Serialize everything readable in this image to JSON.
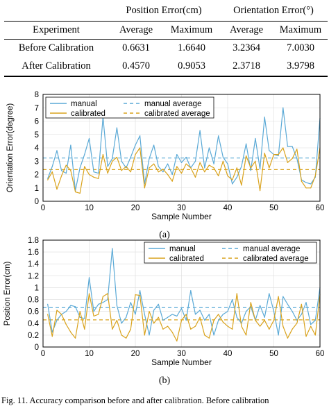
{
  "table": {
    "group_headers": [
      "Position Error(cm)",
      "Orientation Error(°)"
    ],
    "columns": [
      "Experiment",
      "Average",
      "Maximum",
      "Average",
      "Maximum"
    ],
    "rows": [
      [
        "Before Calibration",
        "0.6631",
        "1.6640",
        "3.2364",
        "7.0030"
      ],
      [
        "After Calibration",
        "0.4570",
        "0.9053",
        "2.3718",
        "3.9798"
      ]
    ]
  },
  "colors": {
    "manual": "#5aa9d6",
    "calibrated": "#d9a21b"
  },
  "chart_data": [
    {
      "type": "line",
      "xlabel": "Sample Number",
      "ylabel": "Orientation Error(degree)",
      "xlim": [
        0,
        60
      ],
      "ylim": [
        0,
        8
      ],
      "xticks": [
        0,
        10,
        20,
        30,
        40,
        50,
        60
      ],
      "yticks": [
        0,
        1,
        2,
        3,
        4,
        5,
        6,
        7,
        8
      ],
      "grid": true,
      "legend": [
        "manual",
        "calibrated",
        "manual average",
        "calibrated average"
      ],
      "x": [
        1,
        2,
        3,
        4,
        5,
        6,
        7,
        8,
        9,
        10,
        11,
        12,
        13,
        14,
        15,
        16,
        17,
        18,
        19,
        20,
        21,
        22,
        23,
        24,
        25,
        26,
        27,
        28,
        29,
        30,
        31,
        32,
        33,
        34,
        35,
        36,
        37,
        38,
        39,
        40,
        41,
        42,
        43,
        44,
        45,
        46,
        47,
        48,
        49,
        50,
        51,
        52,
        53,
        54,
        55,
        56,
        57,
        58,
        59,
        60
      ],
      "series": [
        {
          "name": "manual",
          "values": [
            1.7,
            2.6,
            3.8,
            2.3,
            2.1,
            4.2,
            0.8,
            2.5,
            3.5,
            4.7,
            2.2,
            2.1,
            6.3,
            2.6,
            3.2,
            5.5,
            3.0,
            2.5,
            3.3,
            4.2,
            4.9,
            1.3,
            3.2,
            4.2,
            2.6,
            2.2,
            2.8,
            2.0,
            3.5,
            2.9,
            3.3,
            2.5,
            3.0,
            5.3,
            2.5,
            4.0,
            2.8,
            4.9,
            3.3,
            2.8,
            1.3,
            1.8,
            2.6,
            4.3,
            2.3,
            4.7,
            2.4,
            6.3,
            3.8,
            3.5,
            3.4,
            7.0,
            4.1,
            4.1,
            3.2,
            1.6,
            1.4,
            1.3,
            1.8,
            6.2
          ]
        },
        {
          "name": "calibrated",
          "values": [
            1.6,
            2.2,
            0.9,
            1.9,
            2.7,
            2.3,
            0.7,
            0.6,
            2.6,
            2.0,
            1.8,
            1.7,
            3.5,
            2.1,
            3.0,
            3.3,
            2.3,
            2.6,
            2.2,
            3.5,
            4.0,
            1.0,
            2.5,
            2.8,
            2.2,
            2.4,
            2.0,
            1.5,
            2.6,
            2.1,
            2.8,
            2.5,
            1.8,
            2.9,
            2.2,
            2.7,
            2.5,
            1.9,
            3.0,
            1.9,
            1.6,
            2.5,
            1.2,
            3.4,
            2.5,
            3.0,
            0.8,
            3.6,
            2.5,
            3.5,
            3.5,
            4.0,
            2.9,
            3.2,
            3.9,
            1.5,
            1.0,
            1.0,
            1.9,
            4.0
          ]
        },
        {
          "name": "manual average",
          "constant": 3.2364
        },
        {
          "name": "calibrated average",
          "constant": 2.3718
        }
      ]
    },
    {
      "type": "line",
      "xlabel": "Sample Number",
      "ylabel": "Position Error(cm)",
      "xlim": [
        0,
        60
      ],
      "ylim": [
        0,
        1.8
      ],
      "xticks": [
        0,
        10,
        20,
        30,
        40,
        50,
        60
      ],
      "yticks": [
        0,
        0.2,
        0.4,
        0.6,
        0.8,
        1,
        1.2,
        1.4,
        1.6,
        1.8
      ],
      "grid": true,
      "legend": [
        "manual",
        "calibrated",
        "manual average",
        "calibrated average"
      ],
      "x": [
        1,
        2,
        3,
        4,
        5,
        6,
        7,
        8,
        9,
        10,
        11,
        12,
        13,
        14,
        15,
        16,
        17,
        18,
        19,
        20,
        21,
        22,
        23,
        24,
        25,
        26,
        27,
        28,
        29,
        30,
        31,
        32,
        33,
        34,
        35,
        36,
        37,
        38,
        39,
        40,
        41,
        42,
        43,
        44,
        45,
        46,
        47,
        48,
        49,
        50,
        51,
        52,
        53,
        54,
        55,
        56,
        57,
        58,
        59,
        60
      ],
      "series": [
        {
          "name": "manual",
          "values": [
            0.72,
            0.25,
            0.45,
            0.55,
            0.6,
            0.7,
            0.68,
            0.5,
            0.48,
            1.17,
            0.6,
            0.72,
            0.75,
            0.8,
            1.66,
            0.7,
            0.4,
            0.5,
            0.75,
            0.55,
            0.95,
            0.55,
            0.2,
            0.62,
            0.72,
            0.45,
            0.5,
            0.55,
            0.52,
            0.65,
            0.45,
            0.95,
            0.55,
            0.62,
            0.45,
            0.55,
            0.2,
            0.45,
            0.55,
            0.6,
            0.8,
            0.5,
            0.4,
            0.6,
            0.68,
            0.45,
            0.7,
            0.5,
            0.9,
            0.6,
            0.2,
            0.85,
            0.72,
            0.6,
            0.45,
            0.55,
            0.75,
            0.38,
            0.45,
            1.0
          ]
        },
        {
          "name": "calibrated",
          "values": [
            0.55,
            0.18,
            0.62,
            0.55,
            0.38,
            0.25,
            0.15,
            0.6,
            0.3,
            0.9,
            0.52,
            0.55,
            0.85,
            0.9,
            0.3,
            0.45,
            0.2,
            0.15,
            0.3,
            0.88,
            0.87,
            0.2,
            0.6,
            0.4,
            0.5,
            0.3,
            0.35,
            0.25,
            0.1,
            0.45,
            0.55,
            0.3,
            0.35,
            0.5,
            0.2,
            0.15,
            0.45,
            0.55,
            0.42,
            0.35,
            0.3,
            0.9,
            0.35,
            0.2,
            0.75,
            0.45,
            0.35,
            0.45,
            0.3,
            0.45,
            0.85,
            0.35,
            0.15,
            0.3,
            0.4,
            0.72,
            0.18,
            0.35,
            0.2,
            0.88
          ]
        },
        {
          "name": "manual average",
          "constant": 0.6631
        },
        {
          "name": "calibrated average",
          "constant": 0.457
        }
      ]
    }
  ],
  "captions": {
    "a": "(a)",
    "b": "(b)"
  },
  "figure_caption": "Fig. 11.   Accuracy comparison before and after calibration. Before calibration"
}
